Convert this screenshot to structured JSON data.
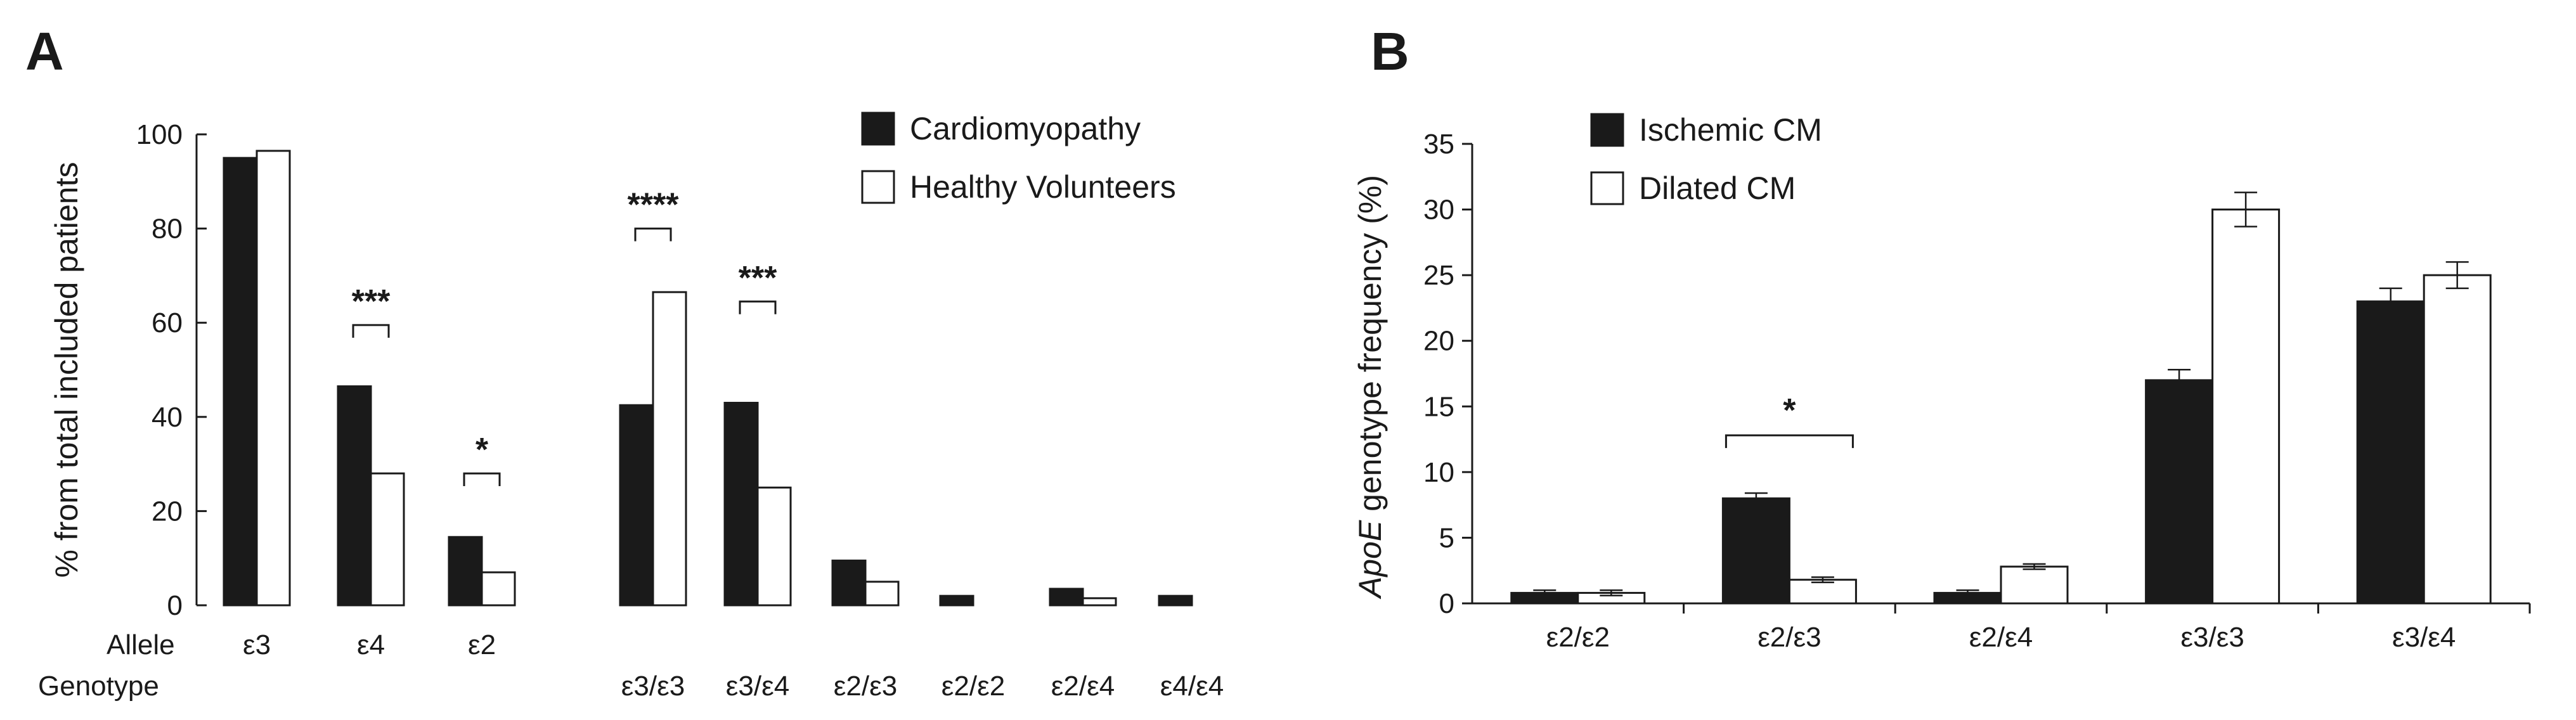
{
  "chart_data": [
    {
      "panel": "A",
      "type": "bar",
      "ylabel": "% from total included patients",
      "ylim": [
        0,
        100
      ],
      "yticks": [
        0,
        20,
        40,
        60,
        80,
        100
      ],
      "row_labels": {
        "allele": "Allele",
        "genotype": "Genotype"
      },
      "allele_categories": [
        "ε3",
        "ε4",
        "ε2"
      ],
      "genotype_categories": [
        "ε3/ε3",
        "ε3/ε4",
        "ε2/ε3",
        "ε2/ε2",
        "ε2/ε4",
        "ε4/ε4"
      ],
      "series": [
        {
          "name": "Cardiomyopathy",
          "color": "#1a1a1a",
          "allele_values": [
            95,
            46.5,
            14.5
          ],
          "genotype_values": [
            42.5,
            43,
            9.5,
            2,
            3.5,
            2
          ]
        },
        {
          "name": "Healthy Volunteers",
          "color": "#ffffff",
          "allele_values": [
            96.5,
            28,
            7
          ],
          "genotype_values": [
            66.5,
            25,
            5,
            0,
            1.5,
            0
          ]
        }
      ],
      "significance": [
        {
          "group": "allele",
          "index": 1,
          "label": "***",
          "bracket_y": 59.5
        },
        {
          "group": "allele",
          "index": 2,
          "label": "*",
          "bracket_y": 28
        },
        {
          "group": "genotype",
          "index": 0,
          "label": "****",
          "bracket_y": 80
        },
        {
          "group": "genotype",
          "index": 1,
          "label": "***",
          "bracket_y": 64.5
        }
      ]
    },
    {
      "panel": "B",
      "type": "bar",
      "ylabel_italic": "ApoE",
      "ylabel_rest": " genotype frequency (%)",
      "ylim": [
        0,
        35
      ],
      "yticks": [
        0,
        5,
        10,
        15,
        20,
        25,
        30,
        35
      ],
      "categories": [
        "ε2/ε2",
        "ε2/ε3",
        "ε2/ε4",
        "ε3/ε3",
        "ε3/ε4"
      ],
      "series": [
        {
          "name": "Ischemic CM",
          "color": "#1a1a1a",
          "values": [
            0.8,
            8,
            0.8,
            17,
            23
          ],
          "errors": [
            0.2,
            0.4,
            0.2,
            0.8,
            1.0
          ]
        },
        {
          "name": "Dilated CM",
          "color": "#ffffff",
          "values": [
            0.8,
            1.8,
            2.8,
            30,
            25
          ],
          "errors": [
            0.2,
            0.2,
            0.2,
            1.3,
            1.0
          ]
        }
      ],
      "significance": [
        {
          "index": 1,
          "label": "*",
          "bracket_y": 12.8
        }
      ]
    }
  ]
}
